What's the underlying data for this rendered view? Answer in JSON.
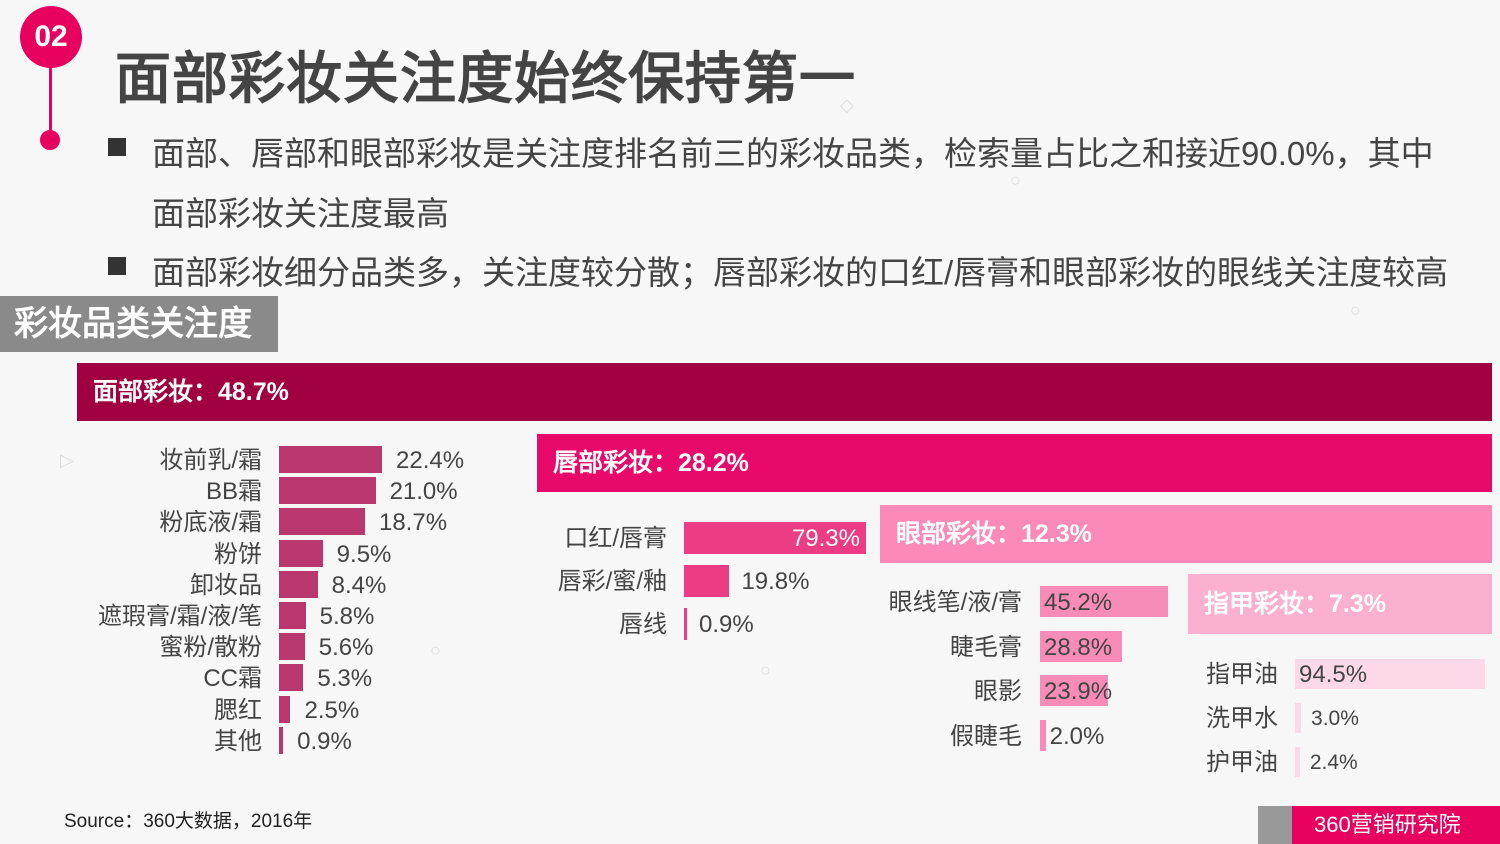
{
  "section_number": "02",
  "title": "面部彩妆关注度始终保持第一",
  "bullets": [
    {
      "line1": "面部、唇部和眼部彩妆是关注度排名前三的彩妆品类，检索量占比之和接近90.0%，其中",
      "line2": "面部彩妆关注度最高"
    },
    {
      "line1": "面部彩妆细分品类多，关注度较分散；唇部彩妆的口红/唇膏和眼部彩妆的眼线关注度较高"
    }
  ],
  "section_label": "彩妆品类关注度",
  "colors": {
    "accent": "#e8005f",
    "face": "#a0003f",
    "face_bar": "#b8386e",
    "lip": "#e80a6a",
    "lip_bar": "#ec3d84",
    "eye": "#fb8ab8",
    "eye_bar": "#f88cb8",
    "nail": "#fbb0d0",
    "nail_bar": "#fcd8e8"
  },
  "chart_data": [
    {
      "type": "bar",
      "title": "面部彩妆：48.7%",
      "categories": [
        "妆前乳/霜",
        "BB霜",
        "粉底液/霜",
        "粉饼",
        "卸妆品",
        "遮瑕膏/霜/液/笔",
        "蜜粉/散粉",
        "CC霜",
        "腮红",
        "其他"
      ],
      "values": [
        22.4,
        21.0,
        18.7,
        9.5,
        8.4,
        5.8,
        5.6,
        5.3,
        2.5,
        0.9
      ],
      "labels": [
        "22.4%",
        "21.0%",
        "18.7%",
        "9.5%",
        "8.4%",
        "5.8%",
        "5.6%",
        "5.3%",
        "2.5%",
        "0.9%"
      ]
    },
    {
      "type": "bar",
      "title": "唇部彩妆：28.2%",
      "categories": [
        "口红/唇膏",
        "唇彩/蜜/釉",
        "唇线"
      ],
      "values": [
        79.3,
        19.8,
        0.9
      ],
      "labels": [
        "79.3%",
        "19.8%",
        "0.9%"
      ]
    },
    {
      "type": "bar",
      "title": "眼部彩妆：12.3%",
      "categories": [
        "眼线笔/液/膏",
        "睫毛膏",
        "眼影",
        "假睫毛"
      ],
      "values": [
        45.2,
        28.8,
        23.9,
        2.0
      ],
      "labels": [
        "45.2%",
        "28.8%",
        "23.9%",
        "2.0%"
      ]
    },
    {
      "type": "bar",
      "title": "指甲彩妆：7.3%",
      "categories": [
        "指甲油",
        "洗甲水",
        "护甲油"
      ],
      "values": [
        94.5,
        3.0,
        2.4
      ],
      "labels": [
        "94.5%",
        "3.0%",
        "2.4%"
      ]
    }
  ],
  "source": "Source：360大数据，2016年",
  "footer_brand": "360营销研究院"
}
